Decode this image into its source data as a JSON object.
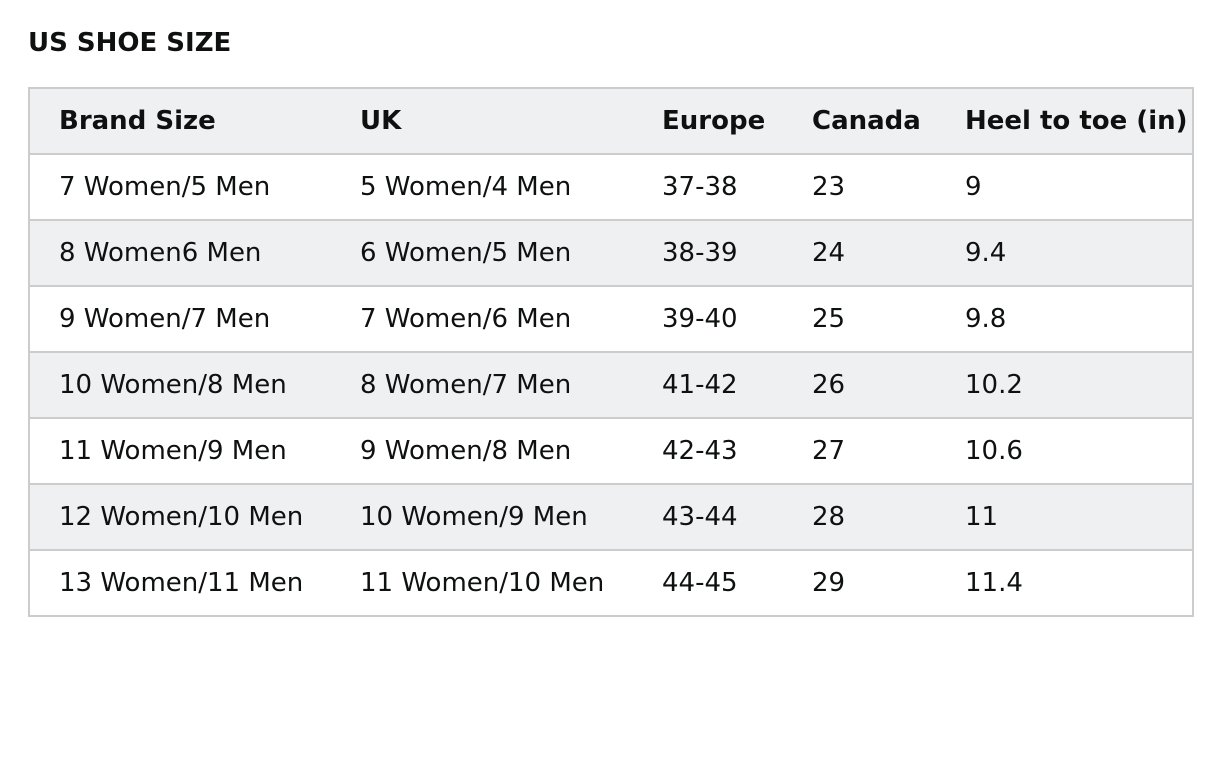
{
  "title": "US SHOE SIZE",
  "table": {
    "headers": [
      "Brand Size",
      "UK",
      "Europe",
      "Canada",
      "Heel to toe (in)"
    ],
    "rows": [
      [
        "7 Women/5 Men",
        "5 Women/4 Men",
        "37-38",
        "23",
        "9"
      ],
      [
        "8 Women6 Men",
        "6 Women/5 Men",
        "38-39",
        "24",
        "9.4"
      ],
      [
        "9 Women/7 Men",
        "7 Women/6 Men",
        "39-40",
        "25",
        "9.8"
      ],
      [
        "10 Women/8 Men",
        "8 Women/7 Men",
        "41-42",
        "26",
        "10.2"
      ],
      [
        "11 Women/9 Men",
        "9 Women/8 Men",
        "42-43",
        "27",
        "10.6"
      ],
      [
        "12 Women/10 Men",
        "10 Women/9 Men",
        "43-44",
        "28",
        "11"
      ],
      [
        "13 Women/11 Men",
        "11 Women/10 Men",
        "44-45",
        "29",
        "11.4"
      ]
    ]
  },
  "colors": {
    "header_bg": "#eef0f1",
    "stripe_bg": "#eef0f1",
    "border": "#cccccc",
    "text": "#0f1111"
  }
}
